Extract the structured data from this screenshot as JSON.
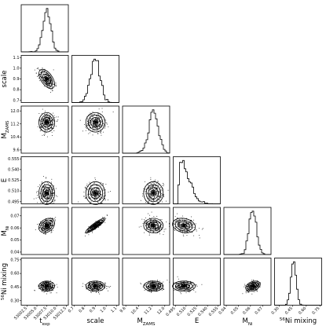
{
  "chart_data": {
    "type": "corner",
    "parameters": [
      {
        "key": "t_exp",
        "label_main": "t",
        "label_sub": "exp",
        "label_sup": "",
        "range": [
          53001.0,
          53013.0
        ],
        "ticks": [
          53002.5,
          53005.0,
          53007.5,
          53010.0,
          53012.5
        ],
        "tick_labels": [
          "53002.5",
          "53005.0",
          "53007.5",
          "53010.0",
          "53012.5"
        ],
        "center": 53007.5,
        "sd": 1.0
      },
      {
        "key": "scale",
        "label_main": "scale",
        "label_sub": "",
        "label_sup": "",
        "range": [
          0.68,
          1.12
        ],
        "ticks": [
          0.7,
          0.8,
          0.9,
          1.0,
          1.1
        ],
        "tick_labels": [
          "0.7",
          "0.8",
          "0.9",
          "1.0",
          "1.1"
        ],
        "center": 0.9,
        "sd": 0.045
      },
      {
        "key": "M_ZAMS",
        "label_main": "M",
        "label_sub": "ZAMS",
        "label_sup": "",
        "range": [
          9.4,
          12.3
        ],
        "ticks": [
          9.6,
          10.4,
          11.2,
          12.0
        ],
        "tick_labels": [
          "9.6",
          "10.4",
          "11.2",
          "12.0"
        ],
        "center": 11.3,
        "sd": 0.3
      },
      {
        "key": "E",
        "label_main": "E",
        "label_sub": "",
        "label_sup": "",
        "range": [
          0.492,
          0.558
        ],
        "ticks": [
          0.495,
          0.51,
          0.525,
          0.54,
          0.555
        ],
        "tick_labels": [
          "0.495",
          "0.510",
          "0.525",
          "0.540",
          "0.555"
        ],
        "center": 0.507,
        "sd": 0.008
      },
      {
        "key": "M_Ni",
        "label_main": "M",
        "label_sub": "Ni",
        "label_sup": "",
        "range": [
          0.038,
          0.077
        ],
        "ticks": [
          0.04,
          0.05,
          0.06,
          0.07
        ],
        "tick_labels": [
          "0.04",
          "0.05",
          "0.06",
          "0.07"
        ],
        "center": 0.062,
        "sd": 0.003
      },
      {
        "key": "Ni_mixing",
        "label_main": "Ni mixing",
        "label_sub": "",
        "label_sup": "56",
        "range": [
          0.25,
          0.77
        ],
        "ticks": [
          0.3,
          0.45,
          0.6,
          0.75
        ],
        "tick_labels": [
          "0.30",
          "0.45",
          "0.60",
          "0.75"
        ],
        "center": 0.46,
        "sd": 0.028
      }
    ],
    "correlations": {
      "scale|t_exp": -0.55,
      "M_Ni|scale": 0.9,
      "M_Ni|t_exp": 0.3,
      "M_Ni|E": -0.2,
      "Ni_mixing|M_Ni": 0.35
    },
    "contour_levels_sigma": [
      0.5,
      1.0,
      1.5,
      2.0
    ]
  }
}
